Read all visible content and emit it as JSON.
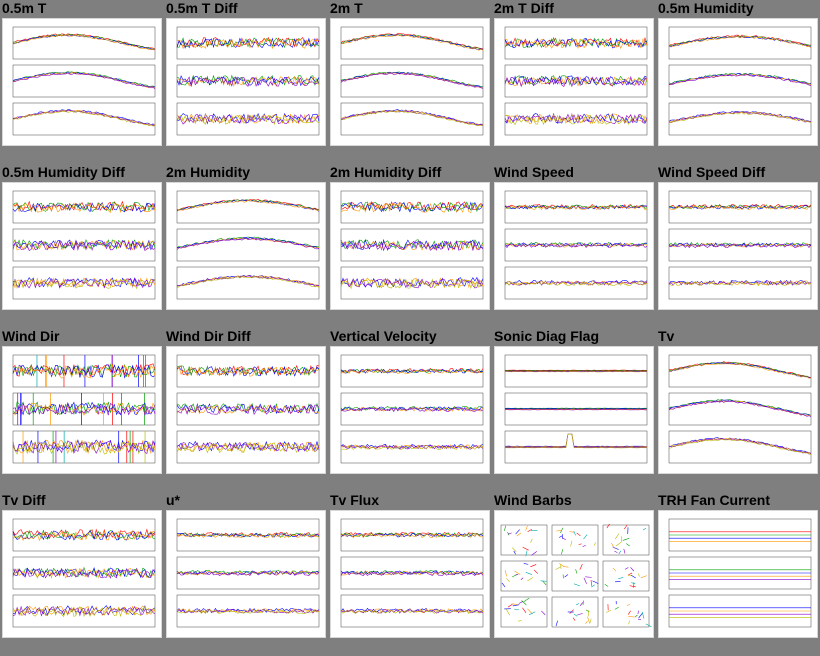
{
  "page": {
    "background": "#7f7f7f"
  },
  "panels": [
    {
      "title": "0.5m T",
      "kind": "temp"
    },
    {
      "title": "0.5m T Diff",
      "kind": "diff"
    },
    {
      "title": "2m T",
      "kind": "temp"
    },
    {
      "title": "2m T Diff",
      "kind": "diff"
    },
    {
      "title": "0.5m Humidity",
      "kind": "hump"
    },
    {
      "title": "0.5m Humidity Diff",
      "kind": "diff"
    },
    {
      "title": "2m Humidity",
      "kind": "hump"
    },
    {
      "title": "2m Humidity Diff",
      "kind": "diff"
    },
    {
      "title": "Wind Speed",
      "kind": "flat"
    },
    {
      "title": "Wind Speed Diff",
      "kind": "flat"
    },
    {
      "title": "Wind Dir",
      "kind": "dir"
    },
    {
      "title": "Wind Dir Diff",
      "kind": "diff"
    },
    {
      "title": "Vertical Velocity",
      "kind": "flat"
    },
    {
      "title": "Sonic Diag Flag",
      "kind": "flag"
    },
    {
      "title": "Tv",
      "kind": "temp"
    },
    {
      "title": "Tv Diff",
      "kind": "diff"
    },
    {
      "title": "u*",
      "kind": "flat"
    },
    {
      "title": "Tv Flux",
      "kind": "flat"
    },
    {
      "title": "Wind Barbs",
      "kind": "barbs"
    },
    {
      "title": "TRH Fan Current",
      "kind": "fan"
    }
  ],
  "series_colors": [
    "#ff0000",
    "#00a000",
    "#0000ff",
    "#ff9900",
    "#8800cc",
    "#bbbb00",
    "#00aaaa"
  ]
}
